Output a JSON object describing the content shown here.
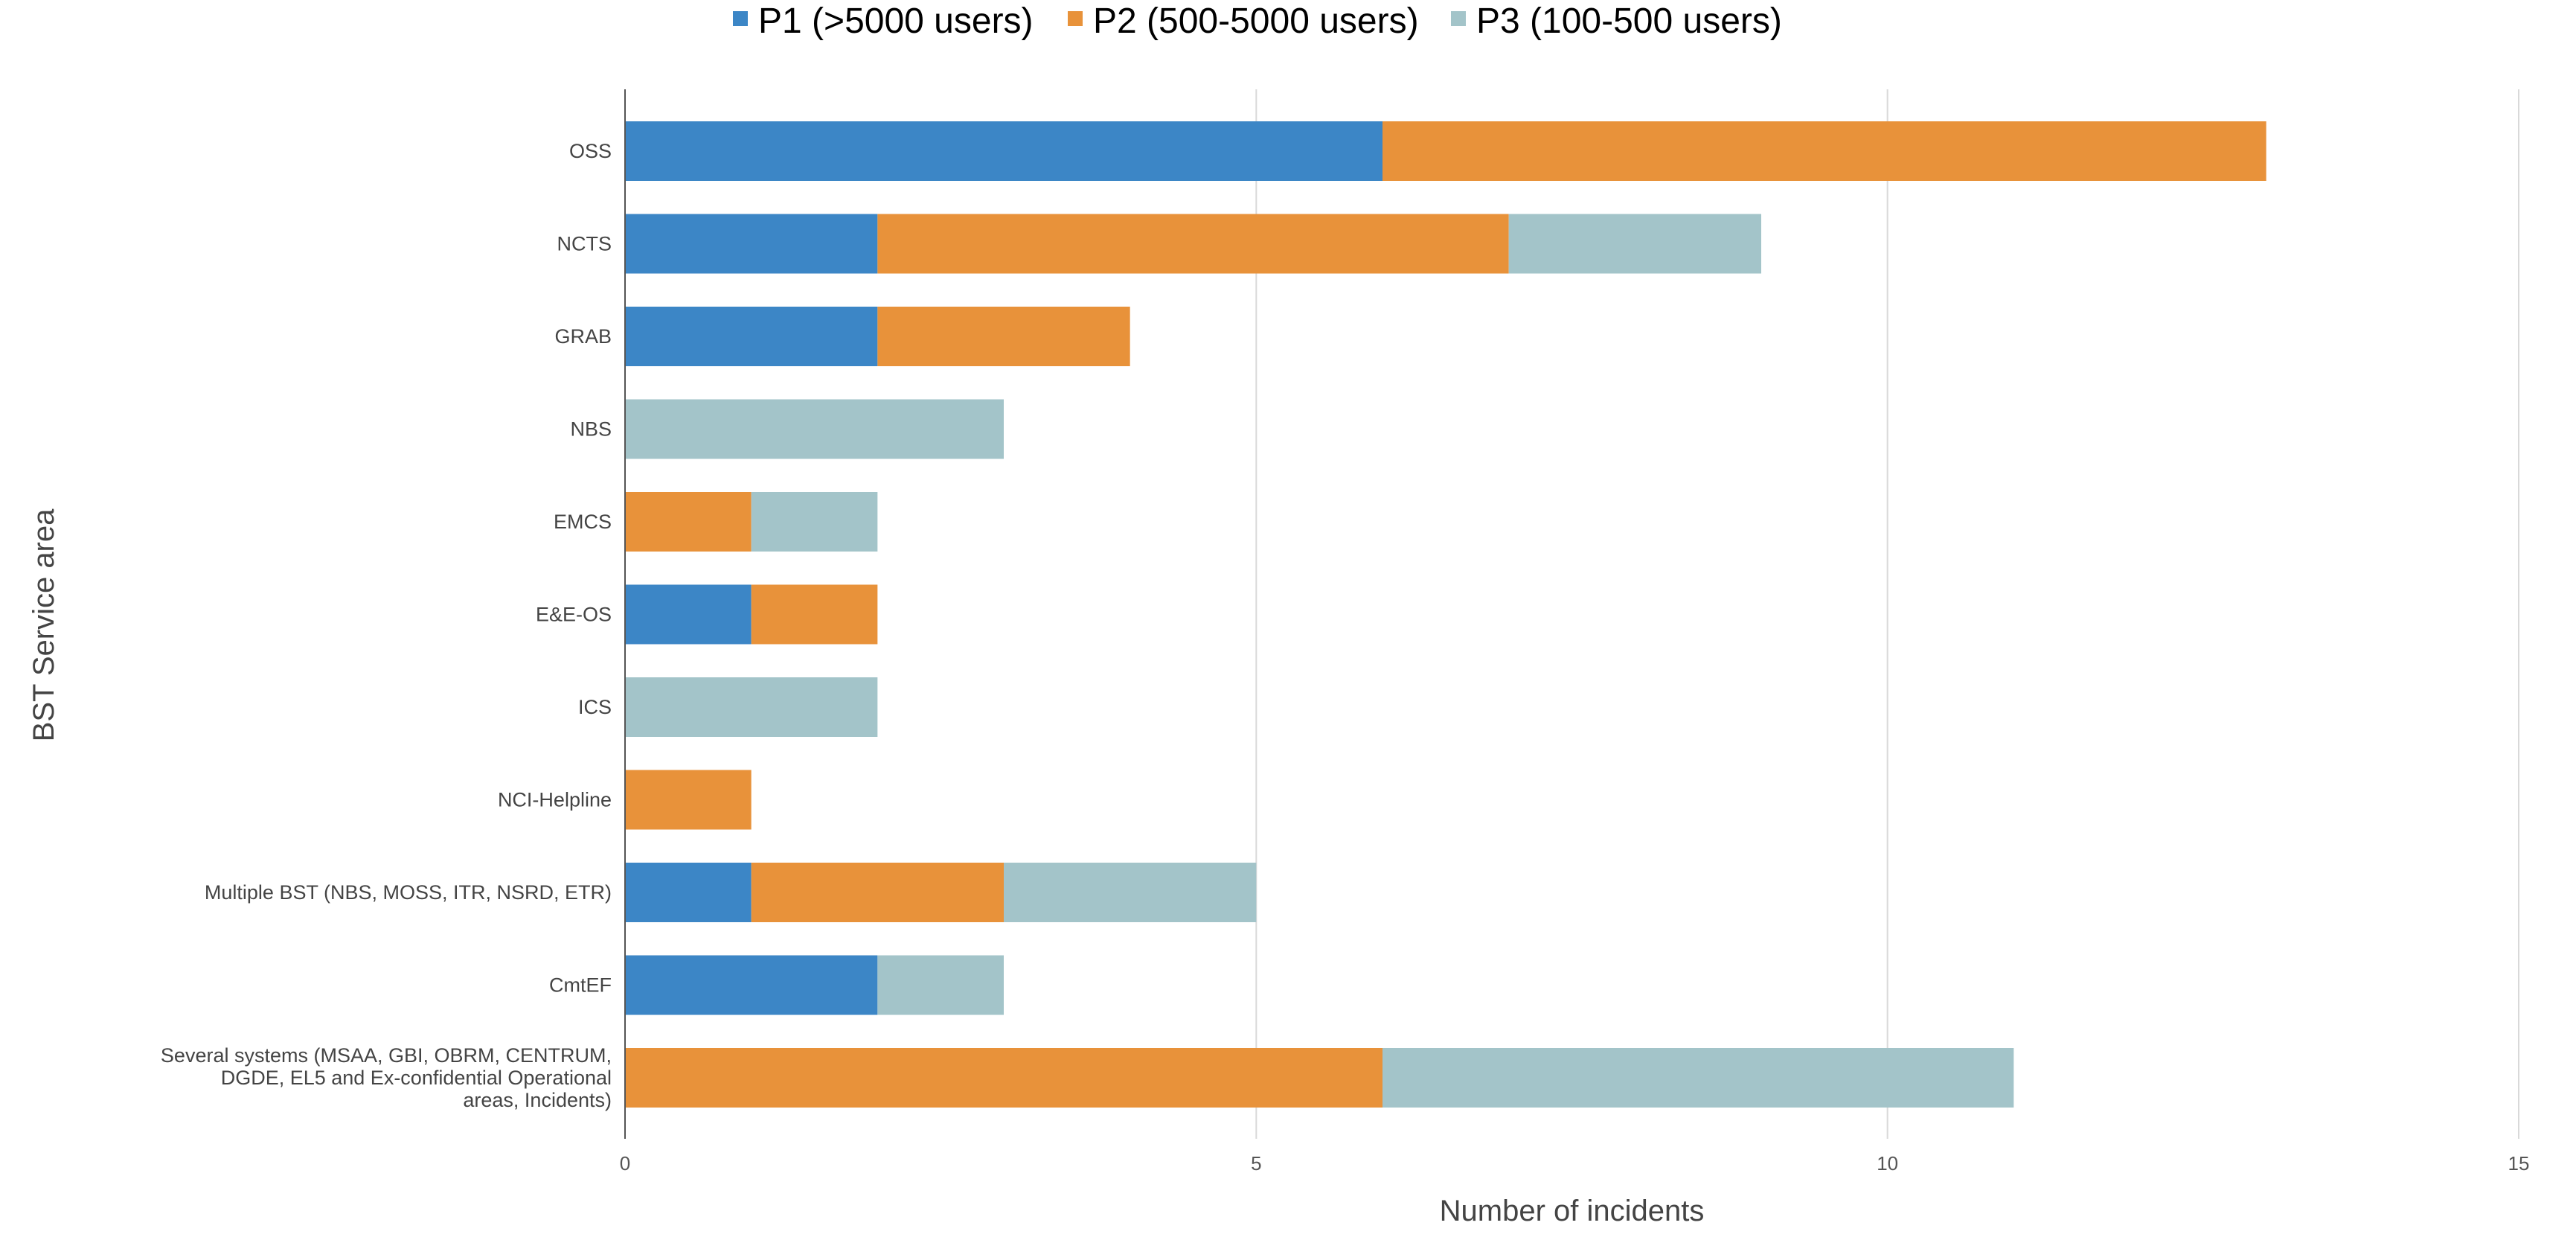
{
  "chart_data": {
    "type": "bar",
    "orientation": "horizontal",
    "stacked": true,
    "title": "",
    "xlabel": "Number of incidents",
    "ylabel": "BST Service area",
    "xlim": [
      0,
      15
    ],
    "xticks": [
      0,
      5,
      10,
      15
    ],
    "grid": true,
    "legend_position": "top",
    "categories": [
      "OSS",
      "NCTS",
      "GRAB",
      "NBS",
      "EMCS",
      "E&E-OS",
      "ICS",
      "NCI-Helpline",
      "Multiple BST (NBS, MOSS, ITR, NSRD, ETR)",
      "CmtEF",
      "Several systems (MSAA, GBI, OBRM, CENTRUM, DGDE, EL5 and Ex-confidential Operational areas, Incidents)"
    ],
    "series": [
      {
        "name": "P1 (>5000 users)",
        "color": "#3c86c6",
        "values": [
          6,
          2,
          2,
          0,
          0,
          1,
          0,
          0,
          1,
          2,
          0
        ]
      },
      {
        "name": "P2 (500-5000 users)",
        "color": "#e8923a",
        "values": [
          7,
          5,
          2,
          0,
          1,
          1,
          0,
          1,
          2,
          0,
          6
        ]
      },
      {
        "name": "P3  (100-500 users)",
        "color": "#a3c4c9",
        "values": [
          0,
          2,
          0,
          3,
          1,
          0,
          2,
          0,
          2,
          1,
          5
        ]
      }
    ]
  }
}
